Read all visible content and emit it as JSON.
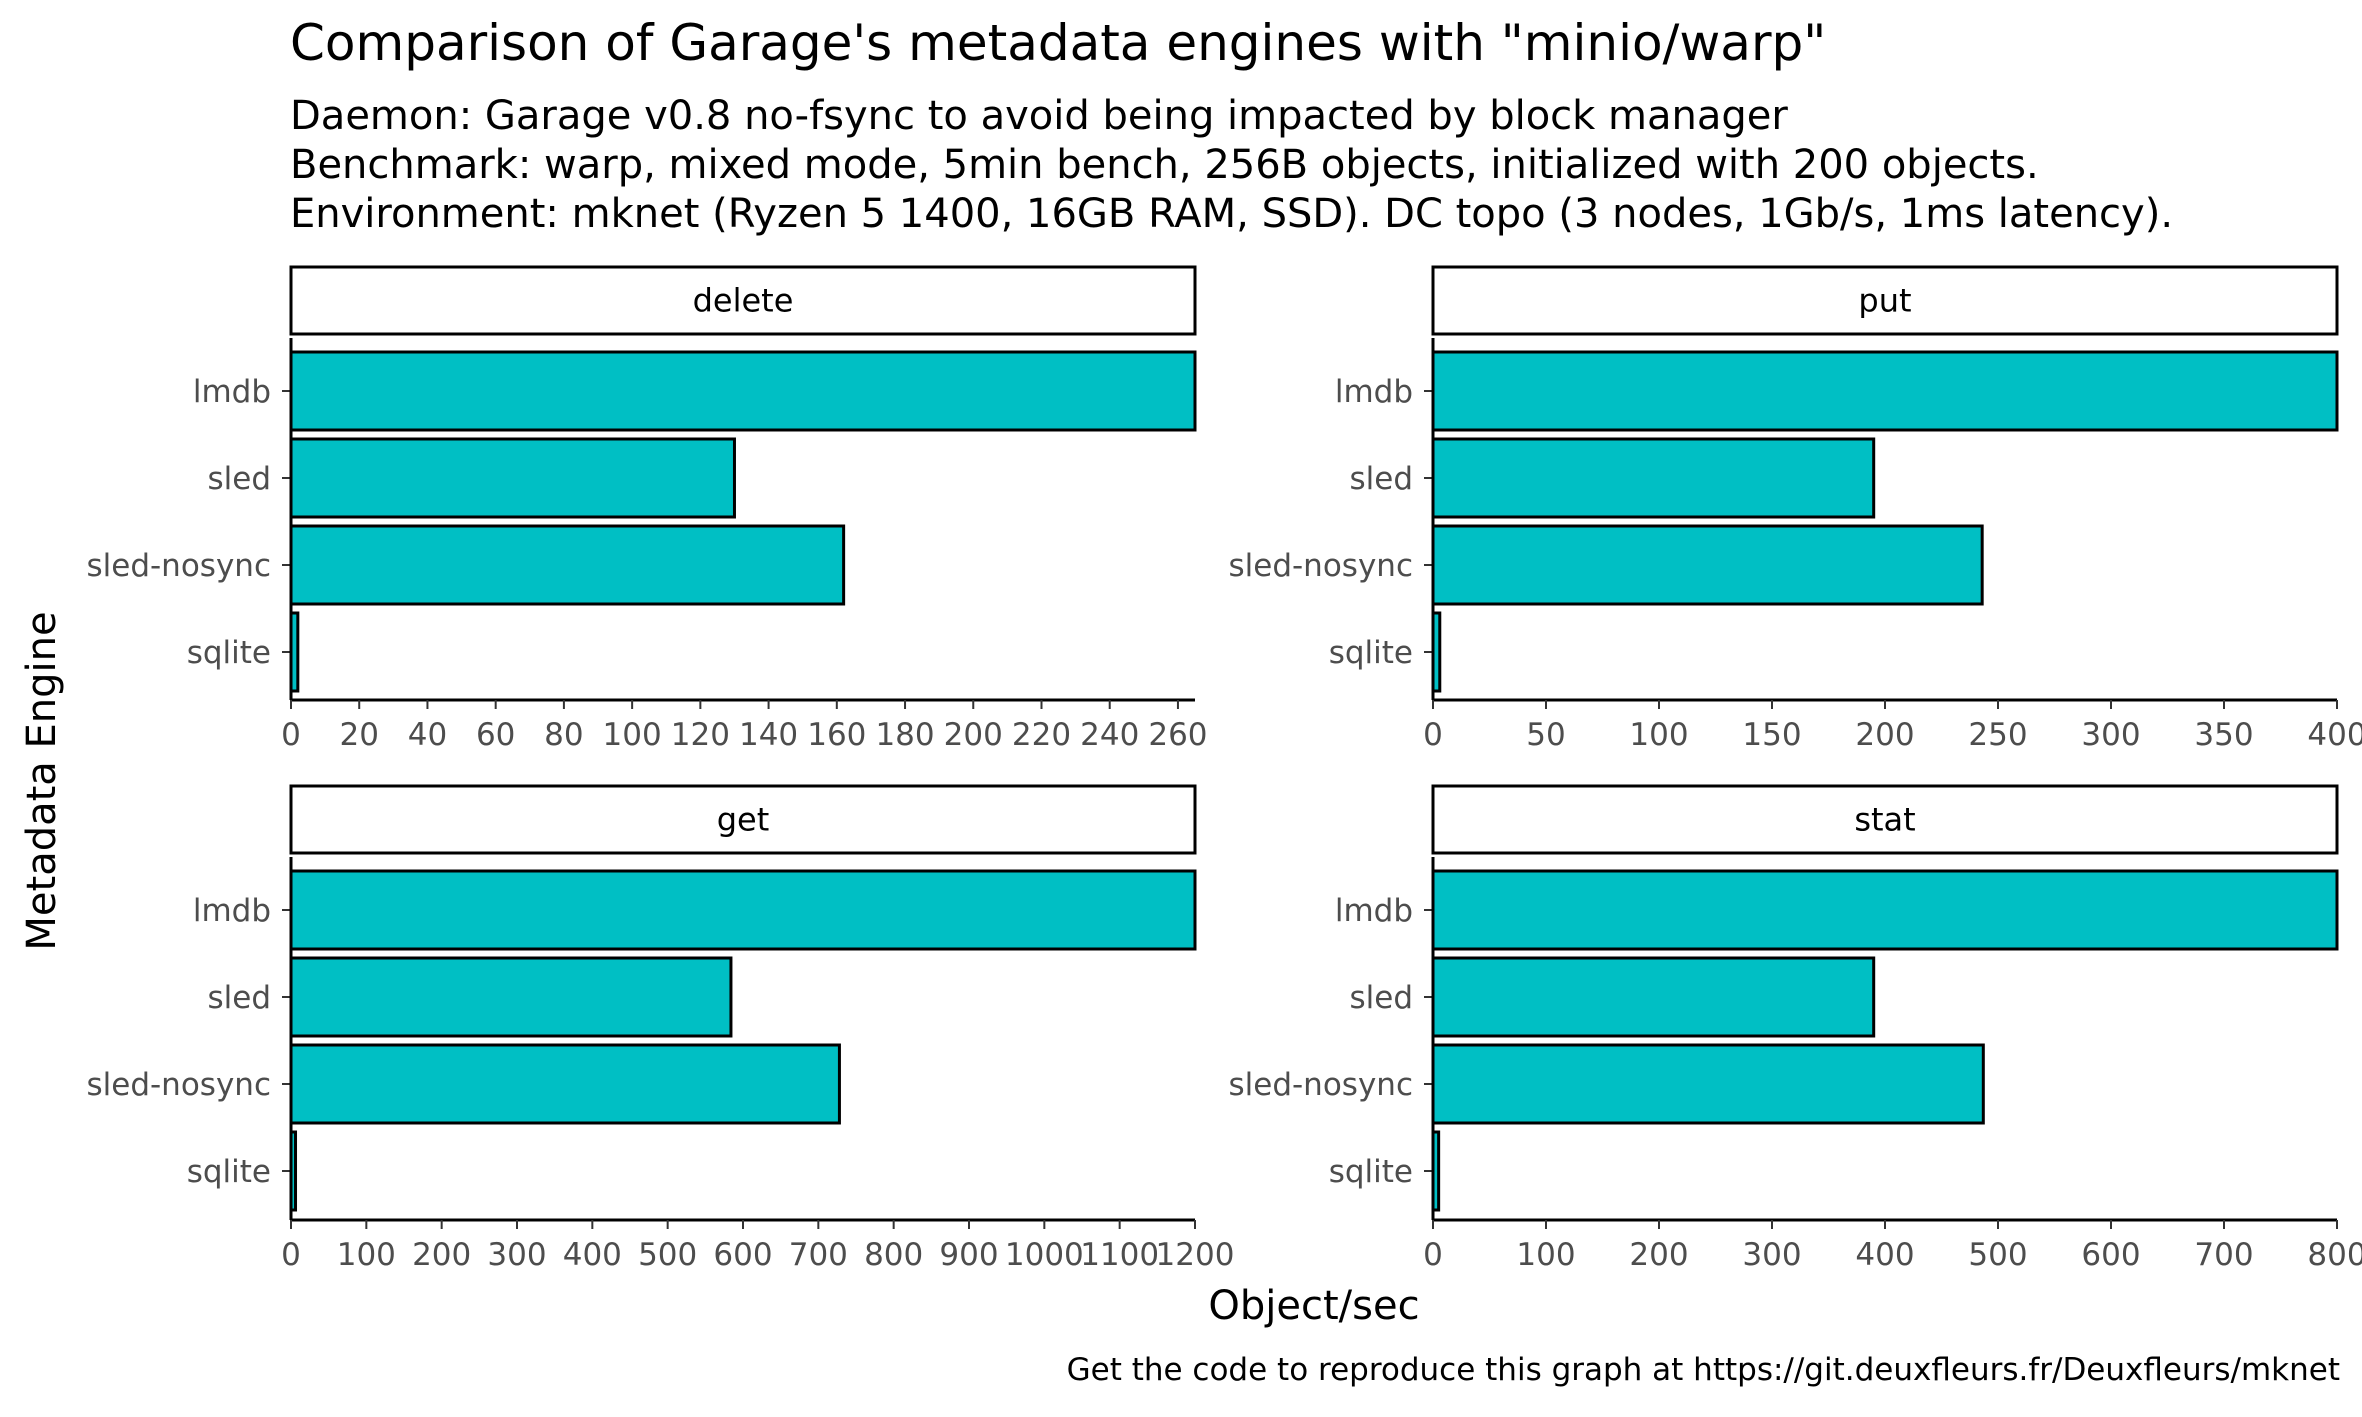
{
  "title": "Comparison of Garage's metadata engines with \"minio/warp\"",
  "subtitle": [
    "Daemon: Garage v0.8 no-fsync to avoid being impacted by block manager",
    "Benchmark: warp, mixed mode, 5min bench, 256B objects, initialized with 200 objects.",
    "Environment: mknet (Ryzen 5 1400, 16GB RAM, SSD). DC topo (3 nodes, 1Gb/s, 1ms latency)."
  ],
  "caption": "Get the code to reproduce this graph at https://git.deuxfleurs.fr/Deuxfleurs/mknet",
  "colors": {
    "bar_fill": "#00BFC4",
    "bar_stroke": "#000000",
    "strip_fill": "#ffffff"
  },
  "chart_data": {
    "type": "bar",
    "orientation": "horizontal",
    "xlabel": "Object/sec",
    "ylabel": "Metadata Engine",
    "categories": [
      "sqlite",
      "sled-nosync",
      "sled",
      "lmdb"
    ],
    "panels": [
      {
        "name": "delete",
        "values": [
          2,
          162,
          130,
          265
        ],
        "xlim": [
          0,
          265
        ],
        "ticks": [
          0,
          20,
          40,
          60,
          80,
          100,
          120,
          140,
          160,
          180,
          200,
          220,
          240,
          260
        ]
      },
      {
        "name": "put",
        "values": [
          3,
          243,
          195,
          400
        ],
        "xlim": [
          0,
          400
        ],
        "ticks": [
          0,
          50,
          100,
          150,
          200,
          250,
          300,
          350,
          400
        ]
      },
      {
        "name": "get",
        "values": [
          6,
          728,
          584,
          1200
        ],
        "xlim": [
          0,
          1200
        ],
        "ticks": [
          0,
          100,
          200,
          300,
          400,
          500,
          600,
          700,
          800,
          900,
          1000,
          1100,
          1200
        ]
      },
      {
        "name": "stat",
        "values": [
          5,
          487,
          390,
          800
        ],
        "xlim": [
          0,
          800
        ],
        "ticks": [
          0,
          100,
          200,
          300,
          400,
          500,
          600,
          700,
          800
        ]
      }
    ]
  }
}
